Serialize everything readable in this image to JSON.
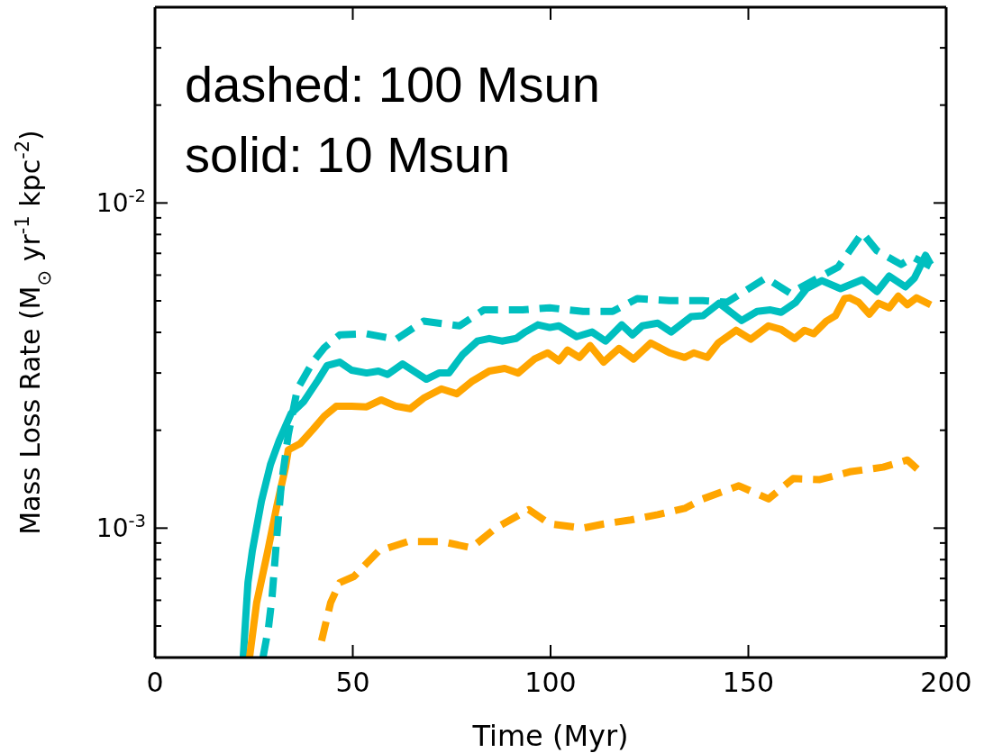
{
  "chart_data": {
    "type": "line",
    "xlabel": "Time (Myr)",
    "ylabel": "Mass Loss Rate (M$_{⊙}$ yr$^{-1}$ kpc$^{-2}$)",
    "annotations": [
      "dashed: 100 Msun",
      "solid: 10 Msun"
    ],
    "log": "y",
    "marker": "none",
    "xlim": [
      0,
      200
    ],
    "xticks": [
      0,
      50,
      100,
      150,
      200
    ],
    "ylim": [
      0.0004,
      0.04
    ],
    "yticks": [
      {
        "value": 0.0004,
        "label": null
      },
      {
        "value": 0.0005,
        "label": null
      },
      {
        "value": 0.0006,
        "label": null
      },
      {
        "value": 0.0007,
        "label": null
      },
      {
        "value": 0.0008,
        "label": null
      },
      {
        "value": 0.0009,
        "label": null
      },
      {
        "value": 0.001,
        "label": "10$^{-3}$"
      },
      {
        "value": 0.002,
        "label": null
      },
      {
        "value": 0.003,
        "label": null
      },
      {
        "value": 0.004,
        "label": null
      },
      {
        "value": 0.005,
        "label": null
      },
      {
        "value": 0.006,
        "label": null
      },
      {
        "value": 0.007,
        "label": null
      },
      {
        "value": 0.008,
        "label": null
      },
      {
        "value": 0.009,
        "label": null
      },
      {
        "value": 0.01,
        "label": "10$^{-2}$"
      },
      {
        "value": 0.02,
        "label": null
      },
      {
        "value": 0.03,
        "label": null
      }
    ],
    "series": [
      {
        "color": "#00bfbf",
        "line_style": "solid",
        "x": [
          22.3,
          23.5,
          24.6,
          26.9,
          29.2,
          31.4,
          34.4,
          37.6,
          41.2,
          43.5,
          46.7,
          49.7,
          53.5,
          56.5,
          58.8,
          62.6,
          68.6,
          71.8,
          74.3,
          77.7,
          81.5,
          84.5,
          87.7,
          91.3,
          93.6,
          96.8,
          99.8,
          102.1,
          106.6,
          110.5,
          113.9,
          118.0,
          120.7,
          123.2,
          127.1,
          130.5,
          135.5,
          138.5,
          142.6,
          148.3,
          152.2,
          155.6,
          158.3,
          162.0,
          164.7,
          168.6,
          173.3,
          178.8,
          182.5,
          185.6,
          189.7,
          192.0,
          194.8,
          196.1
        ],
        "values": [
          0.0004,
          0.00068,
          0.00085,
          0.00121,
          0.00157,
          0.00186,
          0.00225,
          0.00245,
          0.00285,
          0.00316,
          0.00324,
          0.00306,
          0.003,
          0.00304,
          0.00297,
          0.0032,
          0.00287,
          0.003,
          0.003,
          0.00341,
          0.00376,
          0.00383,
          0.00376,
          0.00383,
          0.00401,
          0.00422,
          0.00414,
          0.00419,
          0.00388,
          0.00401,
          0.00376,
          0.00422,
          0.00393,
          0.00419,
          0.00427,
          0.00401,
          0.00447,
          0.0045,
          0.00492,
          0.00435,
          0.00464,
          0.00469,
          0.00461,
          0.00495,
          0.00545,
          0.00577,
          0.00545,
          0.00581,
          0.00534,
          0.00596,
          0.00552,
          0.00588,
          0.0069,
          0.00647
        ]
      },
      {
        "color": "#ffa500",
        "line_style": "solid",
        "x": [
          23.9,
          25.7,
          28.5,
          30.8,
          33.0,
          33.7,
          36.7,
          39.9,
          42.8,
          45.8,
          49.7,
          53.5,
          57.2,
          61.0,
          64.5,
          67.9,
          72.4,
          76.3,
          80.0,
          84.5,
          88.4,
          91.8,
          95.9,
          99.3,
          102.1,
          104.3,
          107.3,
          110.0,
          113.4,
          117.3,
          121.0,
          125.3,
          130.1,
          133.9,
          136.2,
          139.6,
          142.4,
          146.9,
          150.6,
          155.1,
          158.3,
          161.7,
          164.2,
          166.5,
          169.7,
          172.0,
          174.3,
          175.6,
          177.9,
          180.6,
          182.9,
          185.6,
          187.9,
          190.2,
          192.5,
          196.1
        ],
        "values": [
          0.0004,
          0.00059,
          0.00085,
          0.00117,
          0.00154,
          0.00174,
          0.00182,
          0.00201,
          0.00221,
          0.00237,
          0.00237,
          0.00236,
          0.00248,
          0.00237,
          0.00233,
          0.00251,
          0.00268,
          0.00259,
          0.00282,
          0.00304,
          0.0031,
          0.003,
          0.00331,
          0.00346,
          0.00327,
          0.00353,
          0.00335,
          0.00364,
          0.00324,
          0.00357,
          0.00331,
          0.00371,
          0.00346,
          0.00335,
          0.00346,
          0.00335,
          0.00371,
          0.00406,
          0.00381,
          0.00419,
          0.00408,
          0.00383,
          0.00406,
          0.00396,
          0.00433,
          0.0045,
          0.00508,
          0.00511,
          0.00495,
          0.00455,
          0.00492,
          0.00476,
          0.00517,
          0.00486,
          0.00511,
          0.00486
        ]
      },
      {
        "color": "#00bfbf",
        "line_style": "dashed",
        "x": [
          27.3,
          28.7,
          29.6,
          30.8,
          31.9,
          33.7,
          36.0,
          39.9,
          42.8,
          46.7,
          53.5,
          61.0,
          67.9,
          77.0,
          83.1,
          92.9,
          99.8,
          108.2,
          115.7,
          121.9,
          130.1,
          138.5,
          144.6,
          154.4,
          160.6,
          172.7,
          178.8,
          182.5,
          188.6,
          191.6,
          196.1
        ],
        "values": [
          0.0004,
          0.000495,
          0.000615,
          0.00094,
          0.00135,
          0.00194,
          0.00268,
          0.00324,
          0.00359,
          0.00393,
          0.00396,
          0.00381,
          0.00433,
          0.00419,
          0.00469,
          0.00469,
          0.00476,
          0.00464,
          0.00464,
          0.00508,
          0.00501,
          0.00501,
          0.00495,
          0.00588,
          0.00528,
          0.00635,
          0.0081,
          0.00713,
          0.00647,
          0.00681,
          0.00639
        ]
      },
      {
        "color": "#ffa500",
        "line_style": "dashed",
        "x": [
          42.1,
          44.4,
          46.7,
          50.3,
          56.5,
          64.0,
          72.4,
          80.0,
          86.1,
          94.5,
          99.8,
          108.2,
          113.4,
          120.3,
          127.1,
          133.9,
          138.5,
          147.6,
          155.1,
          161.3,
          168.1,
          175.6,
          184.1,
          190.2,
          192.7
        ],
        "values": [
          0.00045,
          0.00059,
          0.00068,
          0.00071,
          0.00085,
          0.00091,
          0.00091,
          0.00087,
          0.001,
          0.00114,
          0.00103,
          0.001,
          0.00103,
          0.00106,
          0.0011,
          0.00115,
          0.00123,
          0.00135,
          0.00123,
          0.00142,
          0.00141,
          0.00149,
          0.00154,
          0.00162,
          0.00152
        ]
      }
    ]
  }
}
